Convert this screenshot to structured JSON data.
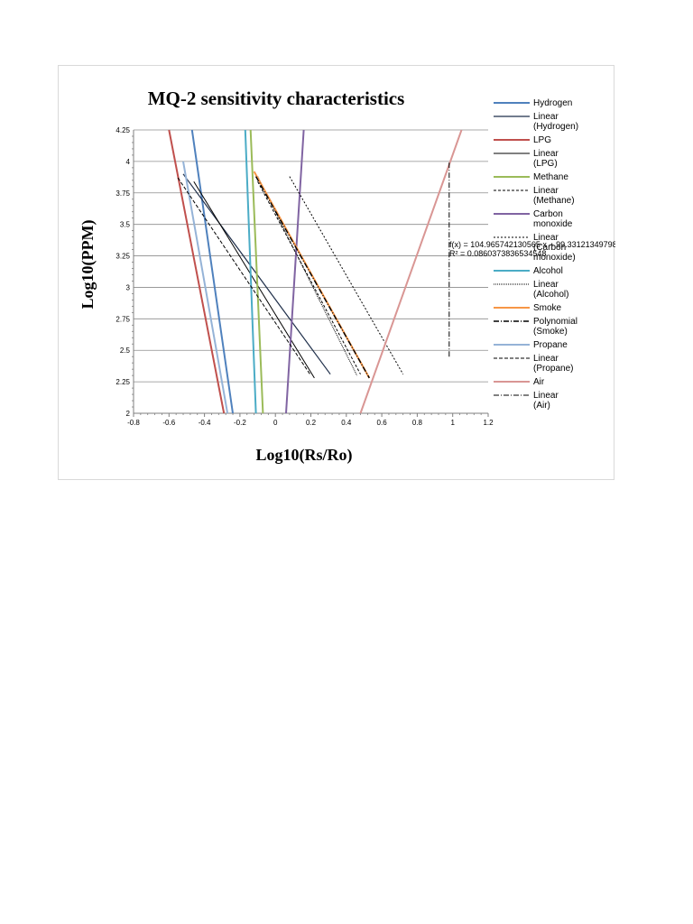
{
  "chart_data": {
    "type": "line",
    "title": "MQ-2 sensitivity characteristics",
    "xlabel": "Log10(Rs/Ro)",
    "ylabel": "Log10(PPM)",
    "xlim": [
      -0.8,
      1.2
    ],
    "ylim": [
      2,
      4.25
    ],
    "x_ticks": [
      "-0.8",
      "-0.6",
      "-0.4",
      "-0.2",
      "0",
      "0.2",
      "0.4",
      "0.6",
      "0.8",
      "1",
      "1.2"
    ],
    "y_ticks": [
      "2",
      "2.25",
      "2.5",
      "2.75",
      "3",
      "3.25",
      "3.5",
      "3.75",
      "4",
      "4.25"
    ],
    "grid": true,
    "legend_position": "right",
    "series": [
      {
        "name": "Hydrogen",
        "color": "#4f81bd",
        "dash": "solid",
        "width": 2,
        "points": [
          [
            -0.47,
            4.25
          ],
          [
            -0.24,
            2.0
          ]
        ]
      },
      {
        "name": "Linear (Hydrogen)",
        "color": "#1f2f4a",
        "dash": "solid",
        "width": 1.2,
        "points": [
          [
            -0.52,
            3.9
          ],
          [
            0.31,
            2.31
          ]
        ]
      },
      {
        "name": "LPG",
        "color": "#c0504d",
        "dash": "solid",
        "width": 2,
        "points": [
          [
            -0.6,
            4.25
          ],
          [
            -0.29,
            2.0
          ]
        ]
      },
      {
        "name": "Linear (LPG)",
        "color": "#000000",
        "dash": "solid",
        "width": 1,
        "points": [
          [
            -0.46,
            3.84
          ],
          [
            0.22,
            2.28
          ]
        ]
      },
      {
        "name": "Methane",
        "color": "#9bbb59",
        "dash": "solid",
        "width": 2,
        "points": [
          [
            -0.14,
            4.25
          ],
          [
            -0.07,
            2.0
          ]
        ]
      },
      {
        "name": "Linear (Methane)",
        "color": "#000000",
        "dash": "3,2",
        "width": 1,
        "points": [
          [
            -0.1,
            3.84
          ],
          [
            0.48,
            2.31
          ]
        ]
      },
      {
        "name": "Carbon monoxide",
        "color": "#8064a2",
        "dash": "solid",
        "width": 2,
        "points": [
          [
            0.06,
            2.0
          ],
          [
            0.16,
            4.25
          ]
        ]
      },
      {
        "name": "Linear (Carbon monoxide)",
        "color": "#000000",
        "dash": "2,2",
        "width": 1,
        "points": [
          [
            0.08,
            3.88
          ],
          [
            0.72,
            2.31
          ]
        ]
      },
      {
        "name": "Alcohol",
        "color": "#4bacc6",
        "dash": "solid",
        "width": 2,
        "points": [
          [
            -0.17,
            4.25
          ],
          [
            -0.11,
            2.0
          ]
        ]
      },
      {
        "name": "Linear (Alcohol)",
        "color": "#000000",
        "dash": "1,1",
        "width": 1,
        "points": [
          [
            -0.1,
            3.88
          ],
          [
            0.46,
            2.3
          ]
        ]
      },
      {
        "name": "Smoke",
        "color": "#f79646",
        "dash": "solid",
        "width": 2,
        "points": [
          [
            -0.12,
            3.92
          ],
          [
            0.53,
            2.28
          ]
        ]
      },
      {
        "name": "Polynomial (Smoke)",
        "color": "#000000",
        "dash": "6,2,1,2",
        "width": 1.4,
        "points": [
          [
            -0.11,
            3.88
          ],
          [
            0.53,
            2.28
          ]
        ]
      },
      {
        "name": "Propane",
        "color": "#95b3d7",
        "dash": "solid",
        "width": 2,
        "points": [
          [
            -0.52,
            4.0
          ],
          [
            -0.27,
            2.0
          ]
        ]
      },
      {
        "name": "Linear (Propane)",
        "color": "#000000",
        "dash": "4,2",
        "width": 1,
        "points": [
          [
            -0.55,
            3.87
          ],
          [
            0.2,
            2.3
          ]
        ]
      },
      {
        "name": "Air",
        "color": "#d99694",
        "dash": "solid",
        "width": 2,
        "points": [
          [
            0.48,
            2.0
          ],
          [
            1.05,
            4.25
          ]
        ]
      },
      {
        "name": "Linear (Air)",
        "color": "#000000",
        "dash": "6,2,1,2",
        "width": 1,
        "points": [
          [
            0.98,
            2.45
          ],
          [
            0.98,
            4.0
          ]
        ]
      }
    ],
    "annotations": [
      "f(x) = 104.96574213056​5 x − 99.3312134979881",
      "R² = 0.0860373836534548"
    ]
  }
}
